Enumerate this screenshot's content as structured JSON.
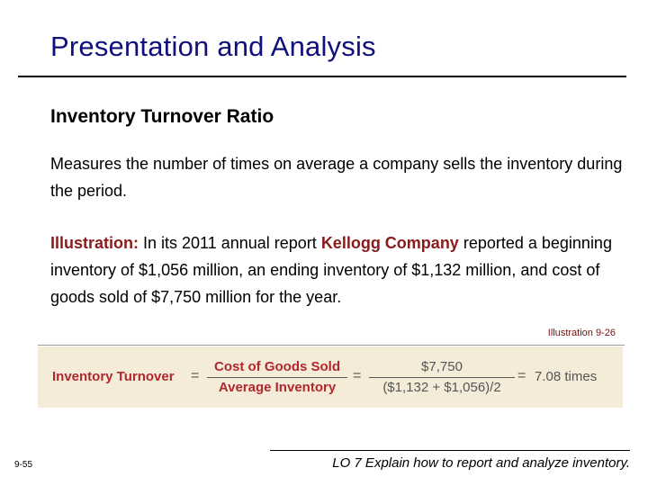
{
  "slide": {
    "title": "Presentation and Analysis",
    "subtitle": "Inventory Turnover Ratio",
    "definition": "Measures the number of times on average a company sells the inventory during the period.",
    "illustration": {
      "label": "Illustration:",
      "text_before_company": " In its 2011 annual report ",
      "company": "Kellogg Company",
      "text_after_company": " reported a beginning inventory of $1,056 million, an ending inventory of $1,132 million, and cost of goods sold of $7,750 million for the year."
    },
    "illustration_ref": "Illustration 9-26",
    "formula": {
      "label": "Inventory Turnover",
      "eq1": "=",
      "numerator": "Cost of Goods Sold",
      "denominator": "Average Inventory",
      "eq2": "=",
      "value_numerator": "$7,750",
      "value_denominator": "($1,132 + $1,056)/2",
      "eq3": "=",
      "result": "7.08 times"
    },
    "page_number": "9-55",
    "learning_objective": "LO 7 Explain how to report and analyze inventory."
  },
  "colors": {
    "title": "#10107a",
    "accent": "#8b1a1a",
    "formula_red": "#b0282e",
    "formula_background": "#f4ecd9"
  }
}
